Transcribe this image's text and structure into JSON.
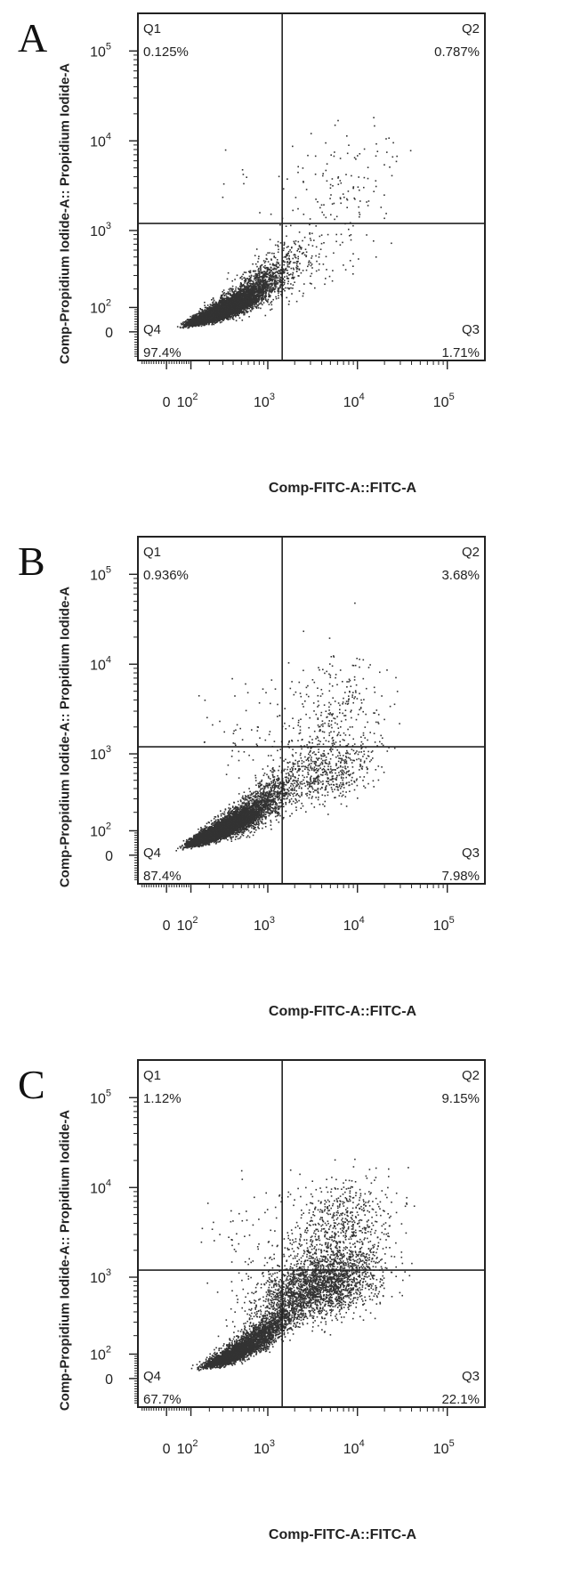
{
  "chart_data": [
    {
      "type": "scatter",
      "panel_label": "A",
      "xlabel": "Comp-FITC-A::FITC-A",
      "ylabel": "Comp-Propidium Iodide-A:: Propidium Iodide-A",
      "x_scale": "biexponential",
      "y_scale": "biexponential",
      "x_ticks": [
        "0",
        "10^2",
        "10^3",
        "10^4",
        "10^5"
      ],
      "y_ticks": [
        "0",
        "10^2",
        "10^3",
        "10^4",
        "10^5"
      ],
      "gate": {
        "x": 1450,
        "y": 1200
      },
      "quadrants": [
        {
          "name": "Q1",
          "percent": "0.125%",
          "position": "top-left"
        },
        {
          "name": "Q2",
          "percent": "0.787%",
          "position": "top-right"
        },
        {
          "name": "Q3",
          "percent": "1.71%",
          "position": "bottom-right"
        },
        {
          "name": "Q4",
          "percent": "97.4%",
          "position": "bottom-left"
        }
      ],
      "events": [
        {
          "x": 190,
          "y": 60,
          "n": 3000,
          "spread_x": 0.18,
          "spread_y": 0.16,
          "corr": 0.8
        },
        {
          "x": 420,
          "y": 120,
          "n": 3000,
          "spread_x": 0.2,
          "spread_y": 0.18,
          "corr": 0.8
        },
        {
          "x": 900,
          "y": 240,
          "n": 700,
          "spread_x": 0.22,
          "spread_y": 0.22,
          "corr": 0.7
        },
        {
          "x": 3000,
          "y": 500,
          "n": 120,
          "spread_x": 0.35,
          "spread_y": 0.3,
          "corr": 0.5
        },
        {
          "x": 7000,
          "y": 3500,
          "n": 110,
          "spread_x": 0.35,
          "spread_y": 0.3,
          "corr": 0.3
        },
        {
          "x": 500,
          "y": 2500,
          "n": 8,
          "spread_x": 0.3,
          "spread_y": 0.3,
          "corr": 0
        }
      ]
    },
    {
      "type": "scatter",
      "panel_label": "B",
      "xlabel": "Comp-FITC-A::FITC-A",
      "ylabel": "Comp-Propidium Iodide-A:: Propidium Iodide-A",
      "x_scale": "biexponential",
      "y_scale": "biexponential",
      "x_ticks": [
        "0",
        "10^2",
        "10^3",
        "10^4",
        "10^5"
      ],
      "y_ticks": [
        "0",
        "10^2",
        "10^3",
        "10^4",
        "10^5"
      ],
      "gate": {
        "x": 1450,
        "y": 1200
      },
      "quadrants": [
        {
          "name": "Q1",
          "percent": "0.936%",
          "position": "top-left"
        },
        {
          "name": "Q2",
          "percent": "3.68%",
          "position": "top-right"
        },
        {
          "name": "Q3",
          "percent": "7.98%",
          "position": "bottom-right"
        },
        {
          "name": "Q4",
          "percent": "87.4%",
          "position": "bottom-left"
        }
      ],
      "events": [
        {
          "x": 180,
          "y": 75,
          "n": 2800,
          "spread_x": 0.16,
          "spread_y": 0.14,
          "corr": 0.8
        },
        {
          "x": 400,
          "y": 140,
          "n": 2800,
          "spread_x": 0.18,
          "spread_y": 0.16,
          "corr": 0.8
        },
        {
          "x": 900,
          "y": 260,
          "n": 800,
          "spread_x": 0.2,
          "spread_y": 0.2,
          "corr": 0.7
        },
        {
          "x": 4000,
          "y": 600,
          "n": 550,
          "spread_x": 0.3,
          "spread_y": 0.18,
          "corr": 0.3
        },
        {
          "x": 5000,
          "y": 2800,
          "n": 320,
          "spread_x": 0.3,
          "spread_y": 0.3,
          "corr": 0.2
        },
        {
          "x": 600,
          "y": 1800,
          "n": 50,
          "spread_x": 0.3,
          "spread_y": 0.3,
          "corr": 0
        }
      ]
    },
    {
      "type": "scatter",
      "panel_label": "C",
      "xlabel": "Comp-FITC-A::FITC-A",
      "ylabel": "Comp-Propidium Iodide-A:: Propidium Iodide-A",
      "x_scale": "biexponential",
      "y_scale": "biexponential",
      "x_ticks": [
        "0",
        "10^2",
        "10^3",
        "10^4",
        "10^5"
      ],
      "y_ticks": [
        "0",
        "10^2",
        "10^3",
        "10^4",
        "10^5"
      ],
      "gate": {
        "x": 1450,
        "y": 1200
      },
      "quadrants": [
        {
          "name": "Q1",
          "percent": "1.12%",
          "position": "top-left"
        },
        {
          "name": "Q2",
          "percent": "9.15%",
          "position": "top-right"
        },
        {
          "name": "Q3",
          "percent": "22.1%",
          "position": "bottom-right"
        },
        {
          "name": "Q4",
          "percent": "67.7%",
          "position": "bottom-left"
        }
      ],
      "events": [
        {
          "x": 350,
          "y": 90,
          "n": 2000,
          "spread_x": 0.16,
          "spread_y": 0.14,
          "corr": 0.8
        },
        {
          "x": 800,
          "y": 200,
          "n": 1700,
          "spread_x": 0.2,
          "spread_y": 0.18,
          "corr": 0.8
        },
        {
          "x": 2500,
          "y": 700,
          "n": 1400,
          "spread_x": 0.3,
          "spread_y": 0.2,
          "corr": 0.5
        },
        {
          "x": 6000,
          "y": 900,
          "n": 900,
          "spread_x": 0.28,
          "spread_y": 0.2,
          "corr": 0.3
        },
        {
          "x": 6000,
          "y": 3500,
          "n": 700,
          "spread_x": 0.28,
          "spread_y": 0.28,
          "corr": 0.2
        },
        {
          "x": 700,
          "y": 2200,
          "n": 80,
          "spread_x": 0.3,
          "spread_y": 0.3,
          "corr": 0
        }
      ]
    }
  ],
  "colors": {
    "events": "#333333",
    "axes": "#222222",
    "gate": "#222222",
    "background": "#ffffff"
  }
}
